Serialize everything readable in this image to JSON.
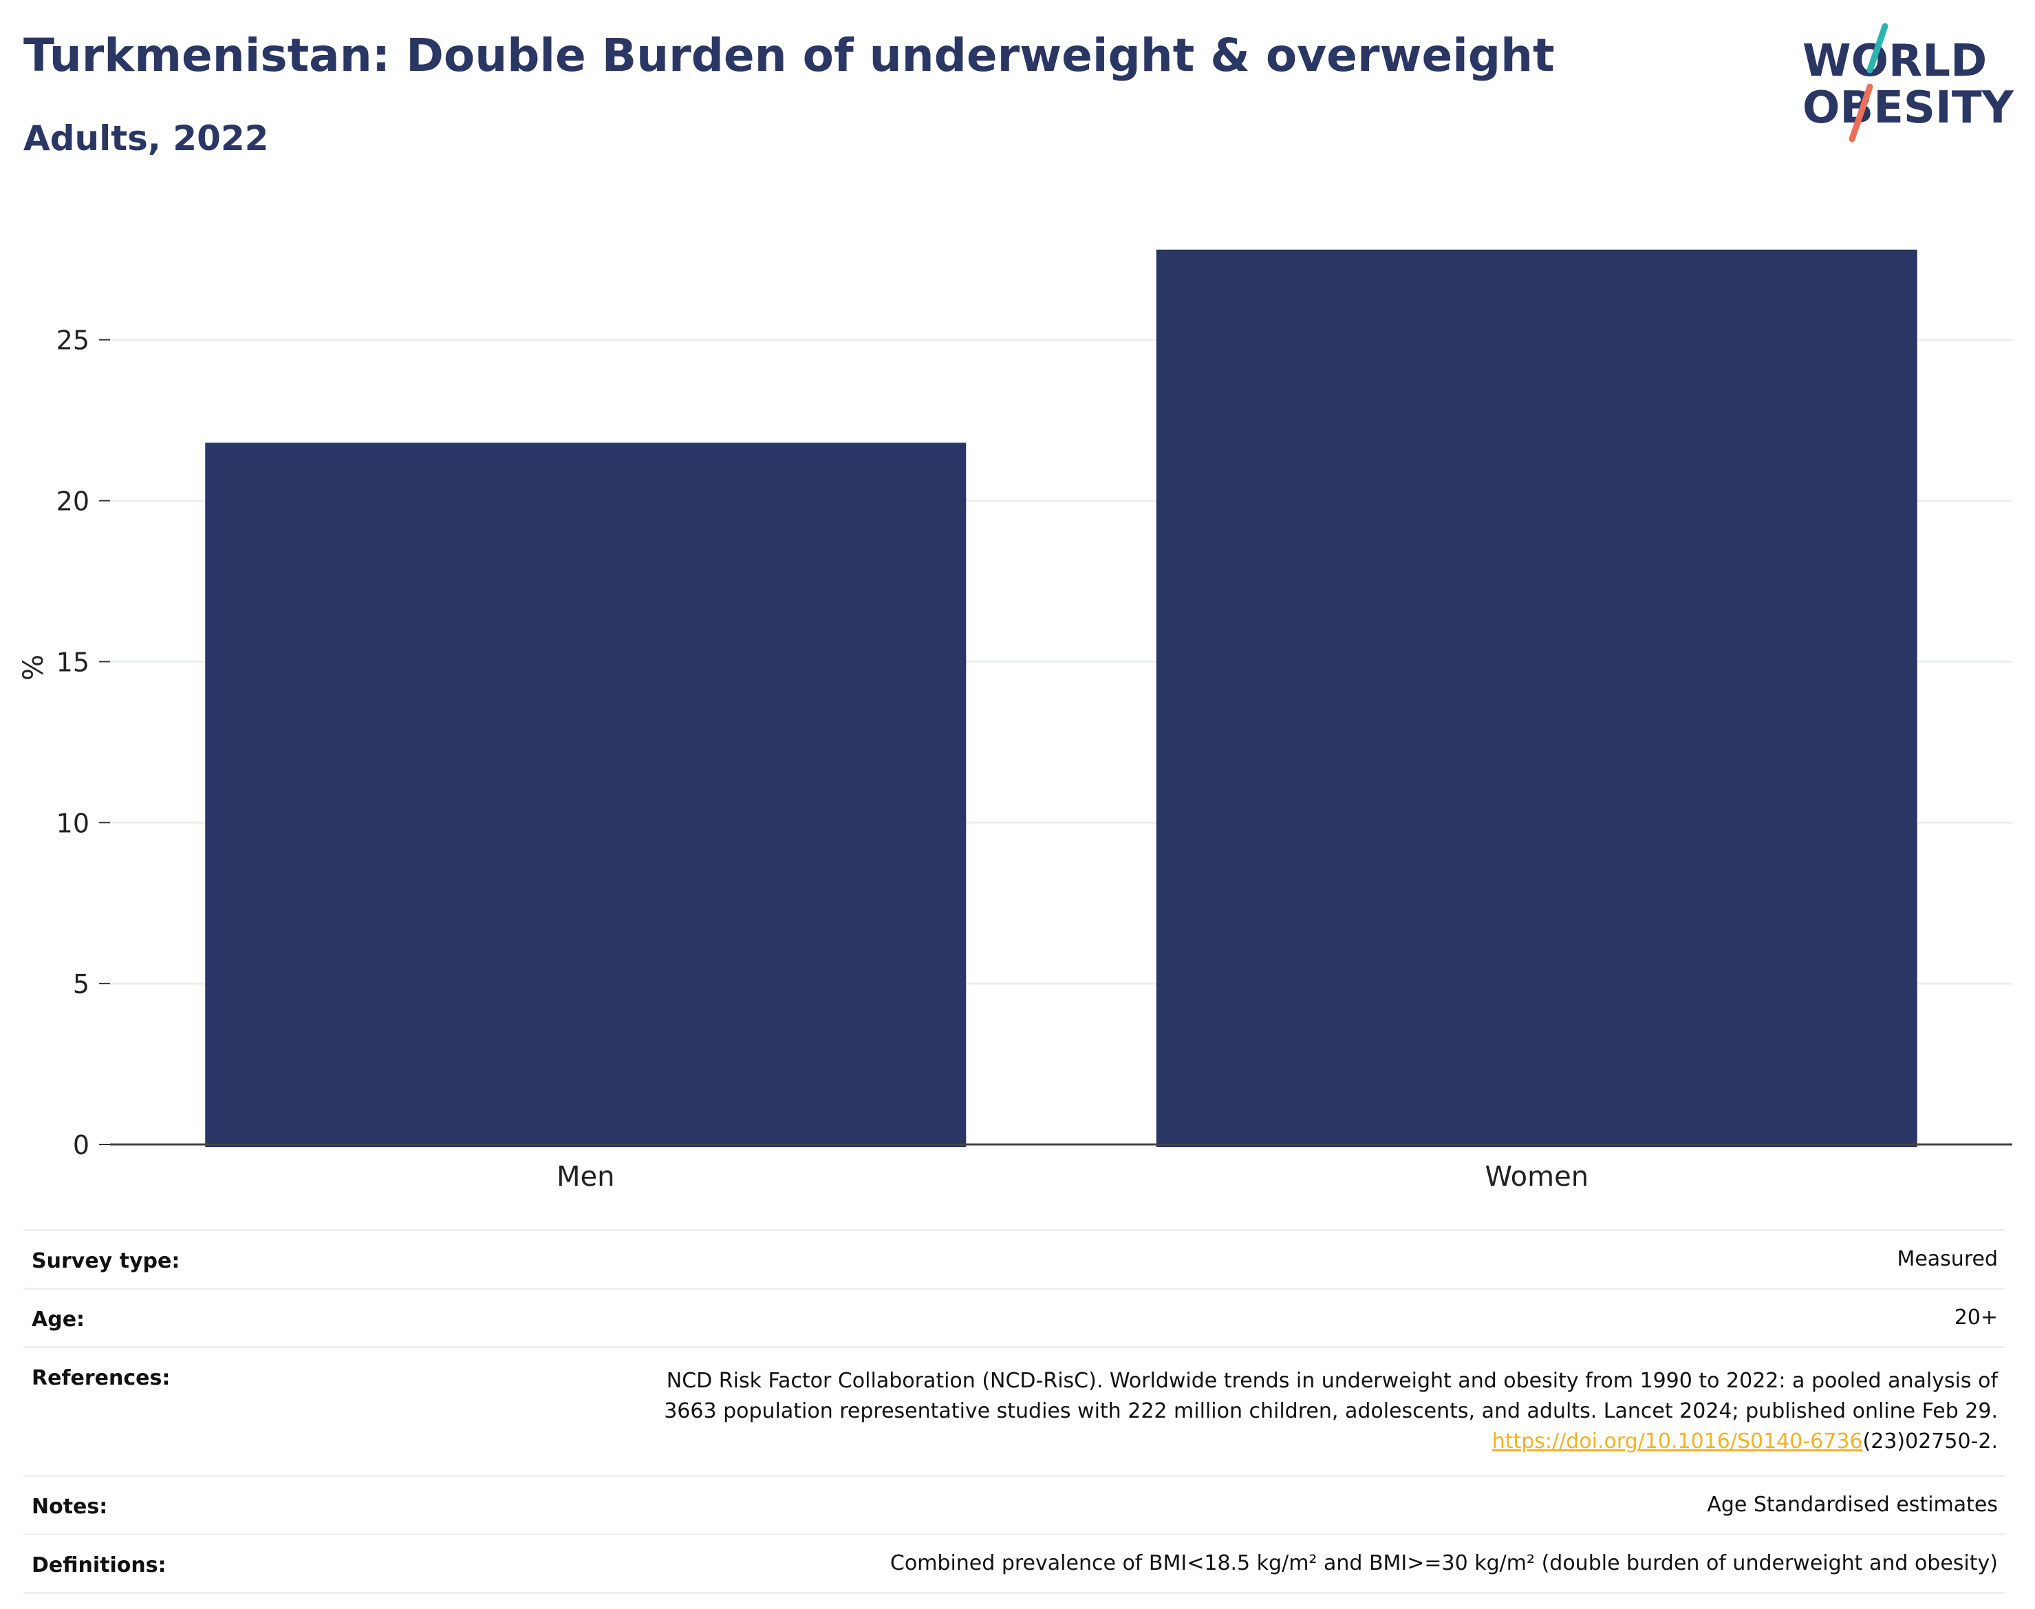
{
  "header": {
    "title": "Turkmenistan: Double Burden of underweight & overweight",
    "subtitle": "Adults, 2022"
  },
  "logo": {
    "line1": "WORLD",
    "line2": "OBESITY",
    "icon": "world-obesity-logo",
    "accent_teal": "#2bb5b0",
    "accent_coral": "#ee6e5a"
  },
  "chart_data": {
    "type": "bar",
    "categories": [
      "Men",
      "Women"
    ],
    "values": [
      21.8,
      27.8
    ],
    "ylabel": "%",
    "ylim": [
      0,
      28.5
    ],
    "yticks": [
      0,
      5,
      10,
      15,
      20,
      25
    ],
    "grid": true,
    "bar_color": "#2a3663"
  },
  "info_table": {
    "survey_type": {
      "label": "Survey type:",
      "value": "Measured"
    },
    "age": {
      "label": "Age:",
      "value": "20+"
    },
    "references": {
      "label": "References:",
      "line1": "NCD Risk Factor Collaboration (NCD-RisC). Worldwide trends in underweight and obesity from 1990 to 2022: a pooled analysis of",
      "line2": "3663 population representative studies with 222 million children, adolescents, and adults. Lancet 2024; published online Feb 29.",
      "link": "https://doi.org/10.1016/S0140-6736",
      "link_suffix": "(23)02750-2."
    },
    "notes": {
      "label": "Notes:",
      "value": "Age Standardised estimates"
    },
    "definitions": {
      "label": "Definitions:",
      "value": "Combined prevalence of BMI<18.5 kg/m² and BMI>=30 kg/m² (double burden of underweight and obesity)"
    }
  }
}
